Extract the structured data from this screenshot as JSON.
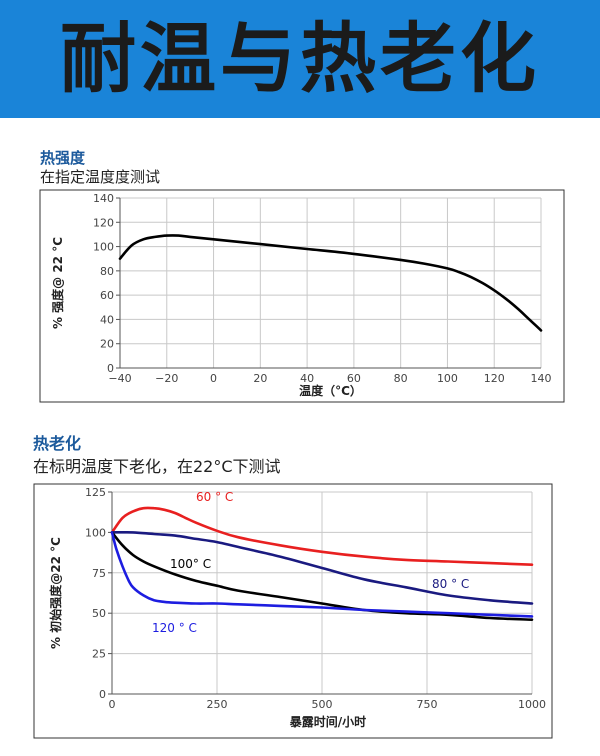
{
  "banner": {
    "title": "耐温与热老化"
  },
  "section1": {
    "title": "热强度",
    "subtitle": "在指定温度度测试"
  },
  "section2": {
    "title": "热老化",
    "subtitle": "在标明温度下老化，在22°C下测试"
  },
  "chart_data": [
    {
      "type": "line",
      "xlabel": "温度（°C）",
      "ylabel": "% 强度@ 22 °C",
      "xlim": [
        -40,
        140
      ],
      "ylim": [
        0,
        140
      ],
      "xticks": [
        -40,
        -20,
        0,
        20,
        40,
        60,
        80,
        100,
        120,
        140
      ],
      "yticks": [
        0,
        20,
        40,
        60,
        80,
        100,
        120,
        140
      ],
      "grid": true,
      "series": [
        {
          "color": "#000000",
          "x": [
            -40,
            -35,
            -30,
            -25,
            -20,
            -15,
            -10,
            0,
            20,
            40,
            60,
            80,
            90,
            100,
            105,
            110,
            115,
            120,
            125,
            130,
            135,
            140
          ],
          "y": [
            90,
            101,
            106,
            108,
            109,
            109,
            108,
            106,
            102,
            98,
            94,
            89,
            86,
            82,
            79,
            75,
            70,
            64,
            57,
            49,
            40,
            31
          ]
        }
      ]
    },
    {
      "type": "line",
      "xlabel": "暴露时间/小时",
      "ylabel": "% 初始强度@22 °C",
      "xlim": [
        0,
        1000
      ],
      "ylim": [
        0,
        125
      ],
      "xticks": [
        0,
        250,
        500,
        750,
        1000
      ],
      "yticks": [
        0,
        25,
        50,
        75,
        100,
        125
      ],
      "grid": true,
      "series": [
        {
          "name": "60 ° C",
          "color": "#e82020",
          "x": [
            0,
            25,
            50,
            75,
            100,
            125,
            150,
            175,
            200,
            250,
            300,
            400,
            500,
            600,
            700,
            800,
            900,
            1000
          ],
          "y": [
            100,
            109,
            113,
            115,
            115,
            114,
            112,
            109,
            106,
            101,
            97,
            92,
            88,
            85,
            83,
            82,
            81,
            80
          ]
        },
        {
          "name": "80 ° C",
          "color": "#1a1a80",
          "x": [
            0,
            50,
            100,
            150,
            200,
            250,
            300,
            400,
            500,
            600,
            700,
            800,
            900,
            1000
          ],
          "y": [
            100,
            100,
            99,
            98,
            96,
            94,
            91,
            85,
            78,
            71,
            66,
            61,
            58,
            56
          ]
        },
        {
          "name": "100° C",
          "color": "#000000",
          "x": [
            0,
            25,
            50,
            75,
            100,
            150,
            200,
            250,
            300,
            400,
            500,
            600,
            700,
            800,
            900,
            1000
          ],
          "y": [
            100,
            92,
            86,
            82,
            79,
            74,
            70,
            67,
            64,
            60,
            56,
            52,
            50,
            49,
            47,
            46
          ]
        },
        {
          "name": "120 ° C",
          "color": "#1d1de0",
          "x": [
            0,
            10,
            25,
            40,
            50,
            75,
            100,
            125,
            150,
            200,
            250,
            300,
            400,
            500,
            600,
            700,
            800,
            900,
            1000
          ],
          "y": [
            100,
            90,
            79,
            70,
            66,
            61,
            58,
            57,
            56.5,
            56,
            56,
            55.5,
            54.5,
            53.5,
            52,
            51,
            50,
            49,
            48
          ]
        }
      ]
    }
  ]
}
